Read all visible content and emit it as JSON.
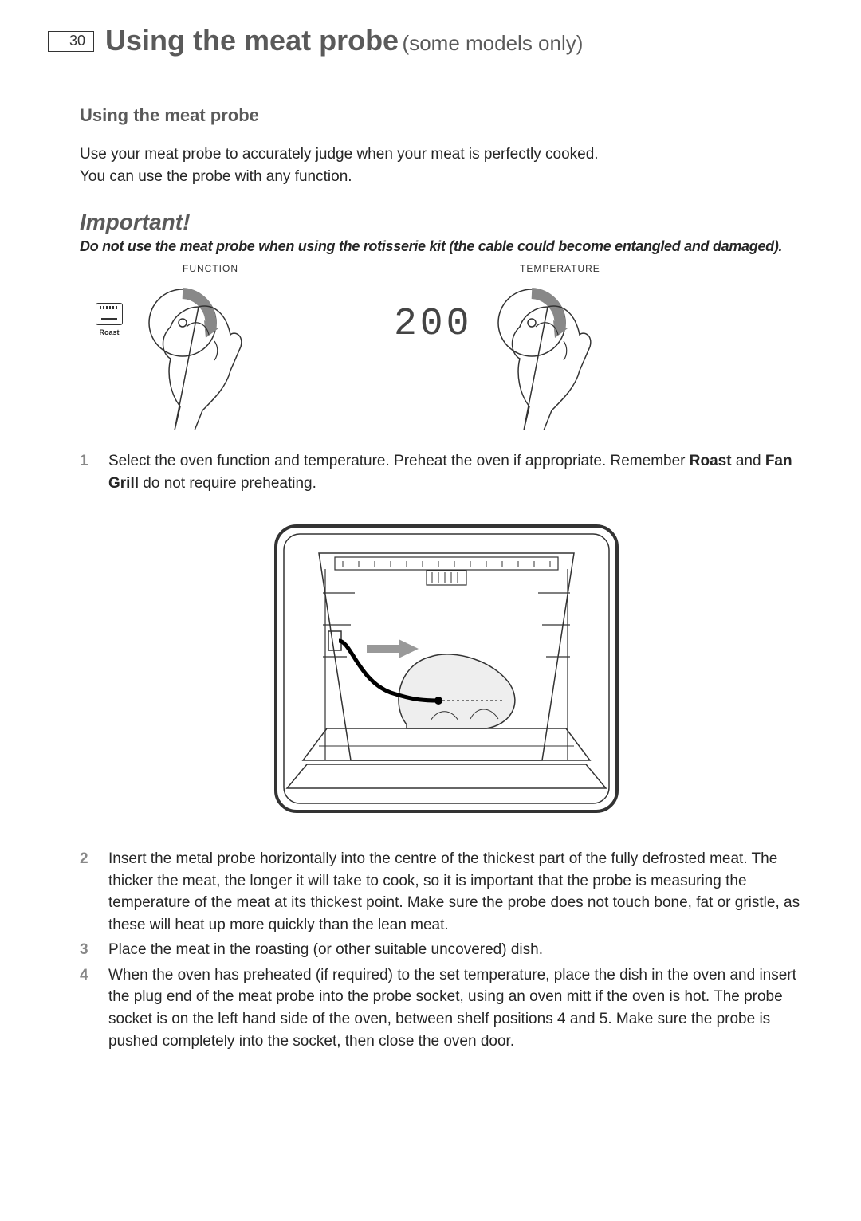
{
  "header": {
    "page_number": "30",
    "title": "Using the meat probe",
    "subtitle": "(some models only)"
  },
  "section_heading": "Using the meat probe",
  "intro_line1": "Use your meat probe to accurately judge when your meat is perfectly cooked.",
  "intro_line2": "You can use the probe with any function.",
  "important_heading": "Important!",
  "important_text": "Do not use the meat probe when using the rotisserie kit (the cable could become entangled and damaged).",
  "dials": {
    "function_label": "FUNCTION",
    "roast_label": "Roast",
    "temperature_label": "TEMPERATURE",
    "temperature_value": "200"
  },
  "steps": [
    {
      "num": "1",
      "parts": [
        {
          "text": "Select the oven function and temperature. Preheat the oven if appropriate. Remember ",
          "bold": false
        },
        {
          "text": "Roast",
          "bold": true
        },
        {
          "text": " and ",
          "bold": false
        },
        {
          "text": "Fan Grill",
          "bold": true
        },
        {
          "text": " do not require preheating.",
          "bold": false
        }
      ]
    },
    {
      "num": "2",
      "parts": [
        {
          "text": "Insert the metal probe horizontally into the centre of the thickest part of the fully defrosted meat. The thicker the meat, the longer it will take to cook, so it is important that the probe is measuring the temperature of the meat at its thickest point. Make sure the probe does not touch bone, fat or gristle, as these will heat up more quickly than the lean meat.",
          "bold": false
        }
      ]
    },
    {
      "num": "3",
      "parts": [
        {
          "text": "Place the meat in the roasting (or other suitable uncovered) dish.",
          "bold": false
        }
      ]
    },
    {
      "num": "4",
      "parts": [
        {
          "text": "When the oven has preheated (if required) to the set temperature, place the dish in the oven and insert the plug end of the meat probe into the probe socket, using an oven mitt if the oven is hot. The probe socket is on the left hand side of the oven, between shelf positions 4 and 5. Make sure the probe is pushed completely into the socket, then close the oven door.",
          "bold": false
        }
      ]
    }
  ],
  "colors": {
    "body_text": "#262626",
    "heading_gray": "#5a5a5a",
    "step_num_gray": "#888888",
    "background": "#ffffff",
    "line": "#333333"
  }
}
